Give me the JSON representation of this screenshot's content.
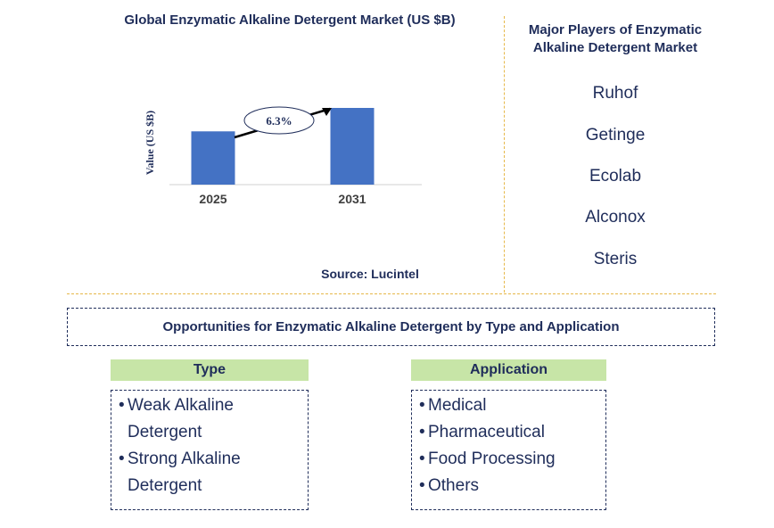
{
  "chart_data": {
    "type": "bar",
    "title": "Global Enzymatic Alkaline Detergent Market (US $B)",
    "ylabel": "Value (US $B)",
    "xlabel": "",
    "categories": [
      "2025",
      "2031"
    ],
    "values": [
      1.0,
      1.44
    ],
    "cagr_label": "6.3%",
    "bar_color": "#4472c4",
    "grid": false
  },
  "source": "Source: Lucintel",
  "players": {
    "title": "Major Players of Enzymatic Alkaline Detergent Market",
    "items": [
      "Ruhof",
      "Getinge",
      "Ecolab",
      "Alconox",
      "Steris"
    ]
  },
  "opportunities": {
    "title": "Opportunities for Enzymatic Alkaline Detergent by Type and Application",
    "type": {
      "header": "Type",
      "items": [
        "Weak Alkaline Detergent",
        "Strong Alkaline Detergent"
      ]
    },
    "application": {
      "header": "Application",
      "items": [
        "Medical",
        "Pharmaceutical",
        "Food Processing",
        "Others"
      ]
    }
  },
  "colors": {
    "text": "#1f2d5a",
    "bar": "#4472c4",
    "header_fill": "#c7e5a7",
    "divider": "#e6b84a"
  }
}
